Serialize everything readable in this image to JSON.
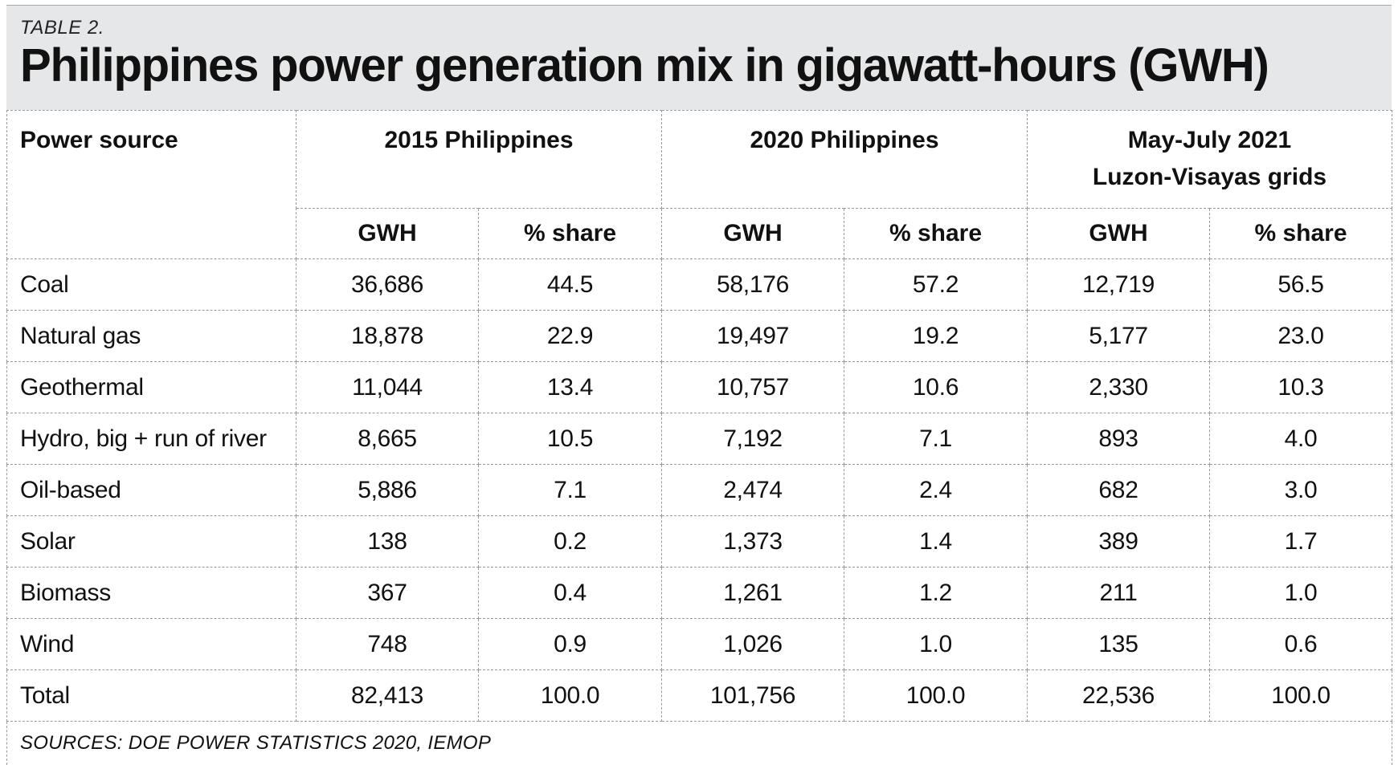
{
  "table_label": "TABLE 2.",
  "title": "Philippines power generation mix in gigawatt-hours (GWH)",
  "columns": {
    "source_header": "Power source",
    "groups": [
      {
        "lines": [
          "2015 Philippines"
        ]
      },
      {
        "lines": [
          "2020 Philippines"
        ]
      },
      {
        "lines": [
          "May-July 2021",
          "Luzon-Visayas grids"
        ]
      }
    ],
    "gwh_label": "GWH",
    "share_label": "% share"
  },
  "rows": [
    {
      "source": "Coal",
      "v": [
        "36,686",
        "44.5",
        "58,176",
        "57.2",
        "12,719",
        "56.5"
      ]
    },
    {
      "source": "Natural gas",
      "v": [
        "18,878",
        "22.9",
        "19,497",
        "19.2",
        "5,177",
        "23.0"
      ]
    },
    {
      "source": "Geothermal",
      "v": [
        "11,044",
        "13.4",
        "10,757",
        "10.6",
        "2,330",
        "10.3"
      ]
    },
    {
      "source": "Hydro, big + run of river",
      "v": [
        "8,665",
        "10.5",
        "7,192",
        "7.1",
        "893",
        "4.0"
      ]
    },
    {
      "source": "Oil-based",
      "v": [
        "5,886",
        "7.1",
        "2,474",
        "2.4",
        "682",
        "3.0"
      ]
    },
    {
      "source": "Solar",
      "v": [
        "138",
        "0.2",
        "1,373",
        "1.4",
        "389",
        "1.7"
      ]
    },
    {
      "source": "Biomass",
      "v": [
        "367",
        "0.4",
        "1,261",
        "1.2",
        "211",
        "1.0"
      ]
    },
    {
      "source": "Wind",
      "v": [
        "748",
        "0.9",
        "1,026",
        "1.0",
        "135",
        "0.6"
      ]
    },
    {
      "source": "Total",
      "v": [
        "82,413",
        "100.0",
        "101,756",
        "100.0",
        "22,536",
        "100.0"
      ]
    }
  ],
  "sources_note": "SOURCES: DOE POWER STATISTICS 2020, IEMOP"
}
